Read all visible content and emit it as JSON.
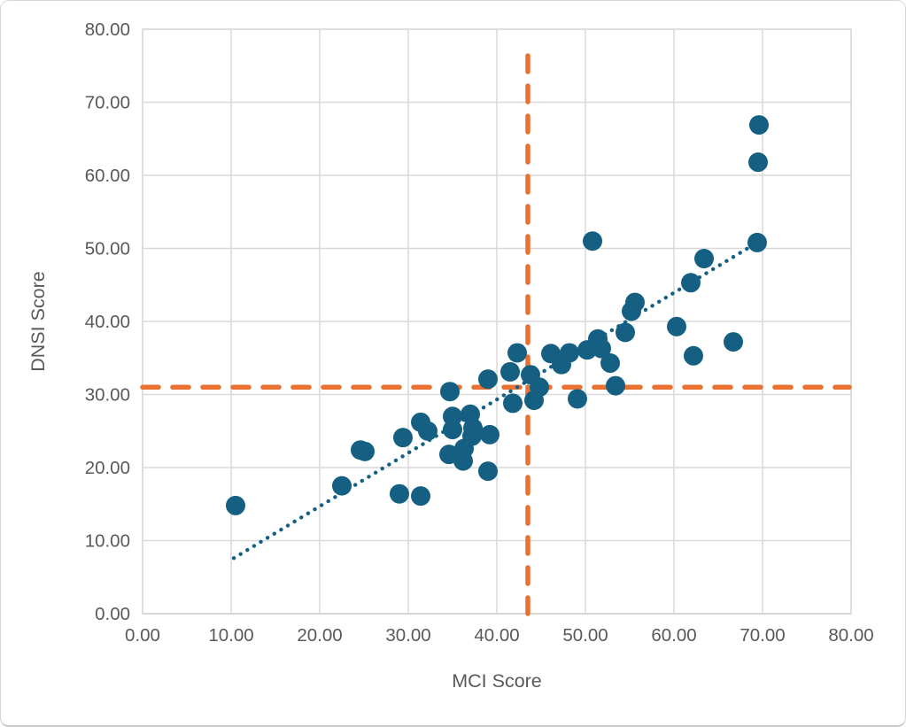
{
  "chart_data": {
    "type": "scatter",
    "title": "",
    "xlabel": "MCI Score",
    "ylabel": "DNSI Score",
    "xlim": [
      0,
      80
    ],
    "ylim": [
      0,
      80
    ],
    "grid": true,
    "legend": "none",
    "x_ticks": [
      0,
      10,
      20,
      30,
      40,
      50,
      60,
      70,
      80
    ],
    "y_ticks": [
      0,
      10,
      20,
      30,
      40,
      50,
      60,
      70,
      80
    ],
    "x_tick_labels": [
      "0.00",
      "10.00",
      "20.00",
      "30.00",
      "40.00",
      "50.00",
      "60.00",
      "70.00",
      "80.00"
    ],
    "y_tick_labels": [
      "0.00",
      "10.00",
      "20.00",
      "30.00",
      "40.00",
      "50.00",
      "60.00",
      "70.00",
      "80.00"
    ],
    "points": [
      [
        10.5,
        14.8
      ],
      [
        22.5,
        17.5
      ],
      [
        24.6,
        22.4
      ],
      [
        25.1,
        22.2
      ],
      [
        29.0,
        16.4
      ],
      [
        31.4,
        16.1
      ],
      [
        29.4,
        24.1
      ],
      [
        31.4,
        26.2
      ],
      [
        32.2,
        25.0
      ],
      [
        34.7,
        30.4
      ],
      [
        35.0,
        27.0
      ],
      [
        37.0,
        27.3
      ],
      [
        35.0,
        25.2
      ],
      [
        37.3,
        25.4
      ],
      [
        37.2,
        24.3
      ],
      [
        39.2,
        24.5
      ],
      [
        34.6,
        21.8
      ],
      [
        36.3,
        22.6
      ],
      [
        36.2,
        20.9
      ],
      [
        39.0,
        19.5
      ],
      [
        39.0,
        32.1
      ],
      [
        41.5,
        33.1
      ],
      [
        42.3,
        35.7
      ],
      [
        43.8,
        32.7
      ],
      [
        44.8,
        31.0
      ],
      [
        44.2,
        29.2
      ],
      [
        41.8,
        28.8
      ],
      [
        46.1,
        35.6
      ],
      [
        48.2,
        35.7
      ],
      [
        50.2,
        36.1
      ],
      [
        47.3,
        34.1
      ],
      [
        49.1,
        29.4
      ],
      [
        53.4,
        31.2
      ],
      [
        52.8,
        34.3
      ],
      [
        51.4,
        37.6
      ],
      [
        51.8,
        36.3
      ],
      [
        50.8,
        51.0
      ],
      [
        54.5,
        38.5
      ],
      [
        55.6,
        42.6
      ],
      [
        55.2,
        41.4
      ],
      [
        60.3,
        39.3
      ],
      [
        61.9,
        45.3
      ],
      [
        62.2,
        35.3
      ],
      [
        63.4,
        48.6
      ],
      [
        66.7,
        37.2
      ],
      [
        69.4,
        50.8
      ],
      [
        69.5,
        61.8
      ],
      [
        69.6,
        66.9
      ]
    ],
    "trendline": {
      "style": "dotted",
      "x1": 10.3,
      "y1": 7.6,
      "x2": 69.4,
      "y2": 50.8
    },
    "reference_lines": {
      "horizontal": {
        "y": 31.0,
        "x1": 0,
        "x2": 79.8
      },
      "vertical": {
        "x": 43.5,
        "y1": 0,
        "y2": 77.5
      }
    },
    "colors": {
      "points": "#156082",
      "trendline": "#156082",
      "reference": "#E97132",
      "gridline": "#D9D9D9",
      "plot_border": "#D9D9D9",
      "axis_line": "#BFBFBF",
      "text": "#595959"
    }
  }
}
